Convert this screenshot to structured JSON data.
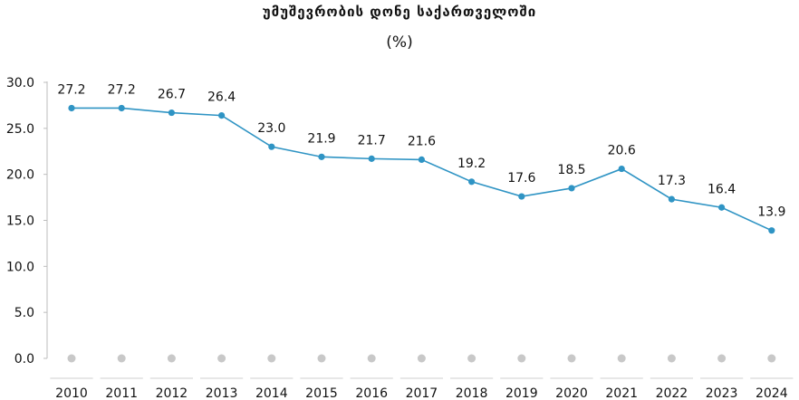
{
  "chart_data": {
    "type": "line",
    "title": "უმუშევრობის დონე საქართველოში",
    "subtitle": "(%)",
    "categories": [
      "2010",
      "2011",
      "2012",
      "2013",
      "2014",
      "2015",
      "2016",
      "2017",
      "2018",
      "2019",
      "2020",
      "2021",
      "2022",
      "2023",
      "2024"
    ],
    "series": [
      {
        "values": [
          27.2,
          27.2,
          26.7,
          26.4,
          23.0,
          21.9,
          21.7,
          21.6,
          19.2,
          17.6,
          18.5,
          20.6,
          17.3,
          16.4,
          13.9
        ],
        "labels": [
          "27.2",
          "27.2",
          "26.7",
          "26.4",
          "23.0",
          "21.9",
          "21.7",
          "21.6",
          "19.2",
          "17.6",
          "18.5",
          "20.6",
          "17.3",
          "16.4",
          "13.9"
        ],
        "color": "#2f94c4"
      }
    ],
    "ylim": [
      0,
      30
    ],
    "yticks": [
      "0.0",
      "5.0",
      "10.0",
      "15.0",
      "20.0",
      "25.0",
      "30.0"
    ],
    "baseline_marker_color": "#c8c8c8",
    "grid": false,
    "legend": "none"
  }
}
